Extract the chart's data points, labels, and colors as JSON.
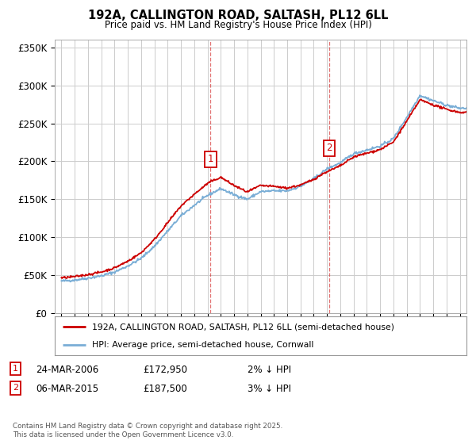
{
  "title": "192A, CALLINGTON ROAD, SALTASH, PL12 6LL",
  "subtitle": "Price paid vs. HM Land Registry's House Price Index (HPI)",
  "ylim": [
    0,
    360000
  ],
  "xlim_start": 1994.5,
  "xlim_end": 2025.5,
  "sale1_date": 2006.22,
  "sale1_price": 172950,
  "sale1_label": "1",
  "sale2_date": 2015.17,
  "sale2_price": 187500,
  "sale2_label": "2",
  "line1_color": "#cc0000",
  "line2_color": "#7aaed6",
  "legend_label1": "192A, CALLINGTON ROAD, SALTASH, PL12 6LL (semi-detached house)",
  "legend_label2": "HPI: Average price, semi-detached house, Cornwall",
  "table_row1": [
    "1",
    "24-MAR-2006",
    "£172,950",
    "2% ↓ HPI"
  ],
  "table_row2": [
    "2",
    "06-MAR-2015",
    "£187,500",
    "3% ↓ HPI"
  ],
  "footnote": "Contains HM Land Registry data © Crown copyright and database right 2025.\nThis data is licensed under the Open Government Licence v3.0.",
  "background_color": "#ffffff",
  "grid_color": "#cccccc"
}
